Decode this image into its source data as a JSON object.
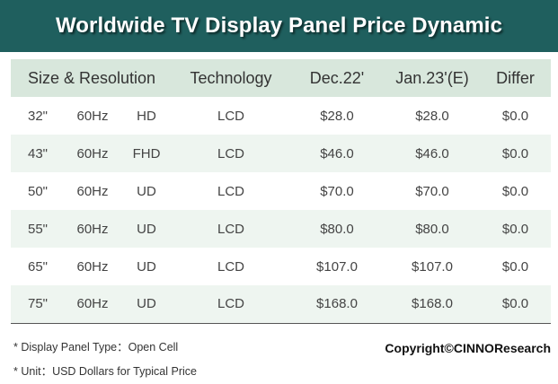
{
  "title": "Worldwide TV Display Panel Price Dynamic",
  "table": {
    "headers": {
      "size_resolution": "Size & Resolution",
      "technology": "Technology",
      "dec": "Dec.22'",
      "jan": "Jan.23'(E)",
      "differ": "Differ"
    },
    "rows": [
      {
        "size": "32\"",
        "hz": "60Hz",
        "res": "HD",
        "tech": "LCD",
        "dec": "$28.0",
        "jan": "$28.0",
        "differ": "$0.0"
      },
      {
        "size": "43\"",
        "hz": "60Hz",
        "res": "FHD",
        "tech": "LCD",
        "dec": "$46.0",
        "jan": "$46.0",
        "differ": "$0.0"
      },
      {
        "size": "50\"",
        "hz": "60Hz",
        "res": "UD",
        "tech": "LCD",
        "dec": "$70.0",
        "jan": "$70.0",
        "differ": "$0.0"
      },
      {
        "size": "55\"",
        "hz": "60Hz",
        "res": "UD",
        "tech": "LCD",
        "dec": "$80.0",
        "jan": "$80.0",
        "differ": "$0.0"
      },
      {
        "size": "65\"",
        "hz": "60Hz",
        "res": "UD",
        "tech": "LCD",
        "dec": "$107.0",
        "jan": "$107.0",
        "differ": "$0.0"
      },
      {
        "size": "75\"",
        "hz": "60Hz",
        "res": "UD",
        "tech": "LCD",
        "dec": "$168.0",
        "jan": "$168.0",
        "differ": "$0.0"
      }
    ]
  },
  "notes": {
    "panel_type": "* Display Panel Type：Open Cell",
    "unit": "* Unit：USD Dollars for Typical Price"
  },
  "copyright": "Copyright©CINNOResearch",
  "colors": {
    "title_bg": "#1f5f5e",
    "header_bg": "#d8e7dc",
    "alt_row_bg": "#eef5f0"
  }
}
